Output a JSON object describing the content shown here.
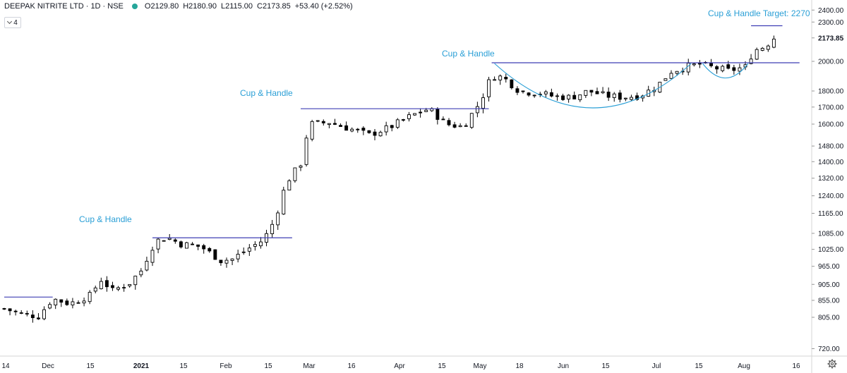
{
  "header": {
    "symbol": "DEEPAK NITRITE LTD · 1D · NSE",
    "open": "O2129.80",
    "high": "H2180.90",
    "low": "L2115.00",
    "close": "C2173.85",
    "change": "+53.40 (+2.52%)",
    "indicator_count": "4"
  },
  "colors": {
    "pattern_line": "#3f3fb5",
    "cup_curve": "#2a9fd6",
    "annotation_text": "#2a9fd6",
    "candle": "#000000",
    "axis_text": "#131722"
  },
  "icons": [
    "status-dot-icon",
    "chevron-down-icon",
    "gear-icon"
  ],
  "chart_data": {
    "type": "candlestick",
    "title": "",
    "price_axis": {
      "scale": "log",
      "ticks": [
        "2400.00",
        "2300.00",
        "2173.85",
        "2000.00",
        "1800.00",
        "1700.00",
        "1600.00",
        "1480.00",
        "1400.00",
        "1320.00",
        "1240.00",
        "1165.00",
        "1085.00",
        "1025.00",
        "965.00",
        "905.00",
        "855.00",
        "805.00",
        "720.00"
      ],
      "last_price": "2173.85"
    },
    "time_axis": {
      "ticks": [
        "14",
        "Dec",
        "15",
        "2021",
        "15",
        "Feb",
        "15",
        "Mar",
        "16",
        "Apr",
        "15",
        "May",
        "18",
        "Jun",
        "15",
        "Jul",
        "15",
        "Aug",
        "16"
      ]
    },
    "annotations": [
      {
        "text": "Cup & Handle"
      },
      {
        "text": "Cup & Handle"
      },
      {
        "text": "Cup & Handle"
      },
      {
        "text": "Cup & Handle Target: 2270"
      }
    ],
    "resistance_lines": [
      {
        "price": 865,
        "from": "Nov 14",
        "to": "Dec 1"
      },
      {
        "price": 1068,
        "from": "Jan 5",
        "to": "Feb 23"
      },
      {
        "price": 1690,
        "from": "Feb 26",
        "to": "May 3"
      },
      {
        "price": 1990,
        "from": "May 4",
        "to": "Aug 20"
      },
      {
        "price": 2270,
        "from": "Aug 3",
        "to": "Aug 14"
      }
    ],
    "cup_curves": [
      {
        "from": "May 5",
        "to": "Jul 13",
        "top": 1985,
        "bottom": 1695
      },
      {
        "from": "Jul 17",
        "to": "Aug 2",
        "top": 1985,
        "bottom": 1885
      }
    ],
    "close_path": [
      [
        "Nov 14",
        830
      ],
      [
        "Nov 20",
        815
      ],
      [
        "Nov 26",
        808
      ],
      [
        "Dec 1",
        860
      ],
      [
        "Dec 7",
        845
      ],
      [
        "Dec 14",
        870
      ],
      [
        "Dec 18",
        920
      ],
      [
        "Dec 22",
        885
      ],
      [
        "Dec 28",
        910
      ],
      [
        "Jan 1",
        950
      ],
      [
        "Jan 6",
        1055
      ],
      [
        "Jan 10",
        1070
      ],
      [
        "Jan 15",
        1045
      ],
      [
        "Jan 22",
        1035
      ],
      [
        "Jan 29",
        985
      ],
      [
        "Feb 2",
        990
      ],
      [
        "Feb 8",
        1030
      ],
      [
        "Feb 13",
        1060
      ],
      [
        "Feb 17",
        1140
      ],
      [
        "Feb 21",
        1300
      ],
      [
        "Feb 26",
        1390
      ],
      [
        "Mar 1",
        1600
      ],
      [
        "Mar 8",
        1610
      ],
      [
        "Mar 15",
        1575
      ],
      [
        "Mar 22",
        1540
      ],
      [
        "Mar 29",
        1580
      ],
      [
        "Apr 6",
        1650
      ],
      [
        "Apr 12",
        1690
      ],
      [
        "Apr 18",
        1600
      ],
      [
        "Apr 24",
        1585
      ],
      [
        "Apr 30",
        1730
      ],
      [
        "May 4",
        1900
      ],
      [
        "May 8",
        1890
      ],
      [
        "May 14",
        1795
      ],
      [
        "May 20",
        1790
      ],
      [
        "May 26",
        1765
      ],
      [
        "Jun 1",
        1760
      ],
      [
        "Jun 7",
        1800
      ],
      [
        "Jun 13",
        1770
      ],
      [
        "Jun 19",
        1760
      ],
      [
        "Jun 25",
        1770
      ],
      [
        "Jul 1",
        1830
      ],
      [
        "Jul 6",
        1930
      ],
      [
        "Jul 12",
        1965
      ],
      [
        "Jul 16",
        1980
      ],
      [
        "Jul 20",
        1960
      ],
      [
        "Jul 26",
        1935
      ],
      [
        "Aug 1",
        1960
      ],
      [
        "Aug 4",
        2080
      ],
      [
        "Aug 8",
        2110
      ],
      [
        "Aug 11",
        2173.85
      ]
    ]
  }
}
